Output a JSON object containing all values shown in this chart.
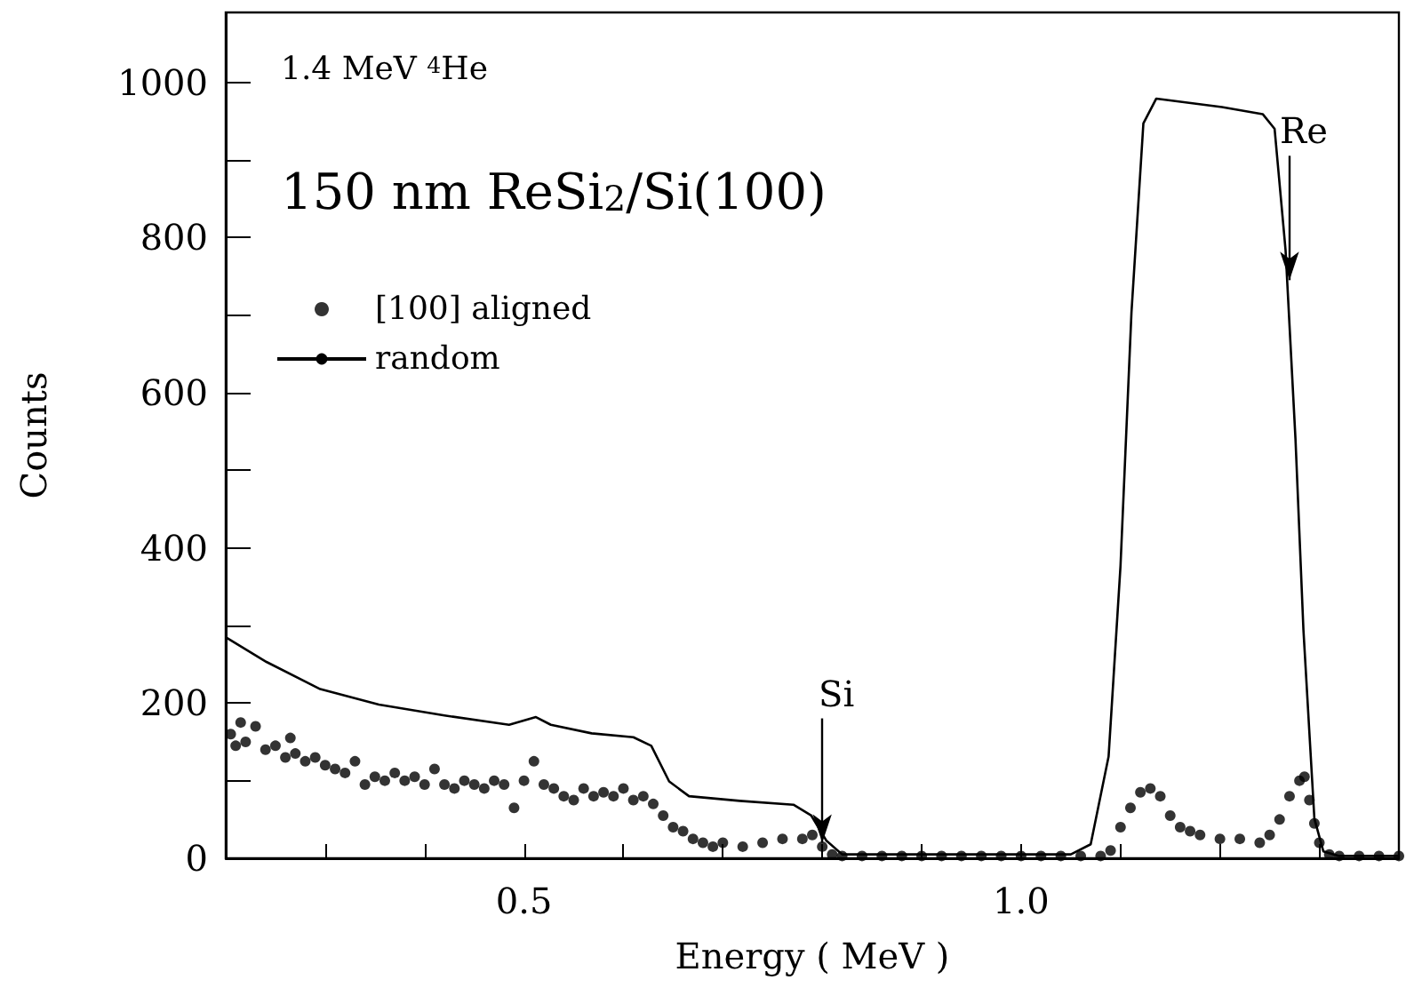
{
  "chart_data": {
    "type": "scatter",
    "xlabel": "Energy ( MeV )",
    "ylabel": "Counts",
    "annotations": [
      "1.4 MeV $^{4}$He",
      "150 nm ReSi$_{2}$/Si(100)",
      {
        "text": "Si",
        "x": 0.8,
        "y": 20
      },
      {
        "text": "Re",
        "x": 1.27,
        "y": 745
      }
    ],
    "xlim": [
      0.2,
      1.38
    ],
    "ylim": [
      0,
      1090
    ],
    "xticks": [
      {
        "value": 0.3,
        "label": null
      },
      {
        "value": 0.4,
        "label": null
      },
      0.5,
      {
        "value": 0.6,
        "label": null
      },
      {
        "value": 0.7,
        "label": null
      },
      {
        "value": 0.8,
        "label": null
      },
      {
        "value": 0.9,
        "label": null
      },
      {
        "value": 1.0,
        "label": "1.0"
      },
      {
        "value": 1.1,
        "label": null
      },
      {
        "value": 1.2,
        "label": null
      },
      {
        "value": 1.3,
        "label": null
      }
    ],
    "yticks": [
      0,
      {
        "value": 100,
        "label": null
      },
      200,
      {
        "value": 300,
        "label": null
      },
      400,
      {
        "value": 500,
        "label": null
      },
      600,
      {
        "value": 700,
        "label": null
      },
      800,
      {
        "value": 900,
        "label": null
      },
      1000
    ],
    "grid": false,
    "legend": "top left",
    "series": [
      {
        "name": "[100] aligned",
        "marker": "circle",
        "color": "#000000",
        "x": [
          0.205,
          0.21,
          0.215,
          0.22,
          0.23,
          0.24,
          0.25,
          0.26,
          0.265,
          0.27,
          0.28,
          0.29,
          0.3,
          0.31,
          0.32,
          0.33,
          0.34,
          0.35,
          0.36,
          0.37,
          0.38,
          0.39,
          0.4,
          0.41,
          0.42,
          0.43,
          0.44,
          0.45,
          0.46,
          0.47,
          0.48,
          0.49,
          0.5,
          0.51,
          0.52,
          0.53,
          0.54,
          0.55,
          0.56,
          0.57,
          0.58,
          0.59,
          0.6,
          0.61,
          0.62,
          0.63,
          0.64,
          0.65,
          0.66,
          0.67,
          0.68,
          0.69,
          0.7,
          0.72,
          0.74,
          0.76,
          0.78,
          0.79,
          0.8,
          0.81,
          0.82,
          0.84,
          0.86,
          0.88,
          0.9,
          0.92,
          0.94,
          0.96,
          0.98,
          1.0,
          1.02,
          1.04,
          1.06,
          1.08,
          1.09,
          1.1,
          1.11,
          1.12,
          1.13,
          1.14,
          1.15,
          1.16,
          1.17,
          1.18,
          1.2,
          1.22,
          1.24,
          1.25,
          1.26,
          1.27,
          1.28,
          1.285,
          1.29,
          1.295,
          1.3,
          1.31,
          1.32,
          1.34,
          1.36,
          1.38
        ],
        "values": [
          160,
          145,
          175,
          150,
          170,
          140,
          145,
          130,
          155,
          135,
          125,
          130,
          120,
          115,
          110,
          125,
          95,
          105,
          100,
          110,
          100,
          105,
          95,
          115,
          95,
          90,
          100,
          95,
          90,
          100,
          95,
          65,
          100,
          125,
          95,
          90,
          80,
          75,
          90,
          80,
          85,
          80,
          90,
          75,
          80,
          70,
          55,
          40,
          35,
          25,
          20,
          15,
          20,
          15,
          20,
          25,
          25,
          30,
          15,
          5,
          3,
          3,
          3,
          3,
          3,
          3,
          3,
          3,
          3,
          3,
          3,
          3,
          3,
          3,
          10,
          40,
          65,
          85,
          90,
          80,
          55,
          40,
          35,
          30,
          25,
          25,
          20,
          30,
          50,
          80,
          100,
          105,
          75,
          45,
          20,
          5,
          3,
          3,
          3,
          3
        ]
      },
      {
        "name": "random",
        "type": "line",
        "marker": "none",
        "color": "#000000",
        "x": [
          0.201,
          0.241,
          0.295,
          0.354,
          0.42,
          0.485,
          0.512,
          0.527,
          0.568,
          0.61,
          0.628,
          0.646,
          0.666,
          0.717,
          0.771,
          0.789,
          0.804,
          0.82,
          0.9,
          1.0,
          1.05,
          1.07,
          1.088,
          1.1,
          1.111,
          1.123,
          1.136,
          1.202,
          1.243,
          1.255,
          1.266,
          1.276,
          1.284,
          1.295,
          1.304,
          1.32,
          1.38
        ],
        "values": [
          284,
          253,
          218,
          198,
          184,
          172,
          182,
          172,
          161,
          156,
          145,
          99,
          80,
          74,
          69,
          55,
          23,
          5,
          5,
          5,
          5,
          18,
          131,
          377,
          703,
          947,
          979,
          968,
          959,
          940,
          784,
          540,
          294,
          51,
          9,
          3,
          3
        ]
      }
    ]
  }
}
